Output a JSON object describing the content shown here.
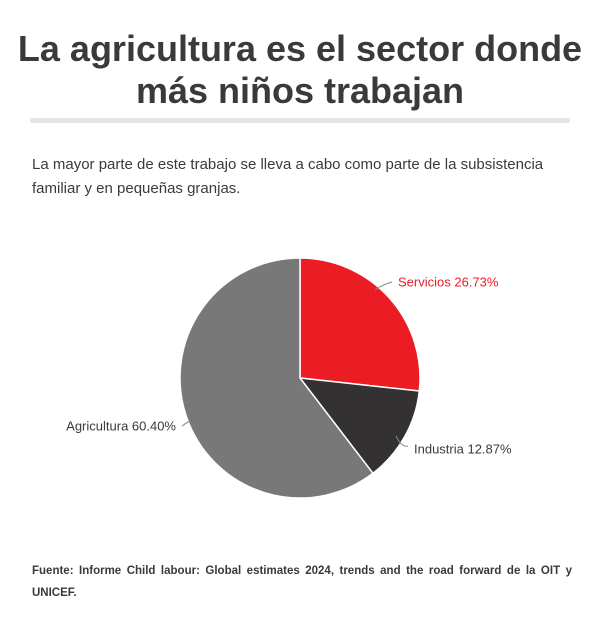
{
  "title": "La agricultura es el sector donde más niños trabajan",
  "subtitle": "La mayor parte de este trabajo se lleva a cabo como parte de la subsistencia familiar y en pequeñas granjas.",
  "source": "Fuente: Informe Child labour: Global estimates 2024, trends and the road forward de la OIT y UNICEF.",
  "colors": {
    "servicios": "#ec1c24",
    "industria": "#333132",
    "agricultura": "#797878",
    "label_default": "#3a3a3a",
    "label_highlight": "#ec1c24"
  },
  "chart_data": {
    "type": "pie",
    "slices": [
      {
        "label": "Servicios 26.73%",
        "category": "Servicios",
        "value": 26.73,
        "color": "#ec1c24",
        "label_color": "#ec1c24"
      },
      {
        "label": "Industria 12.87%",
        "category": "Industria",
        "value": 12.87,
        "color": "#333132",
        "label_color": "#3a3a3a"
      },
      {
        "label": "Agricultura 60.40%",
        "category": "Agricultura",
        "value": 60.4,
        "color": "#797878",
        "label_color": "#3a3a3a"
      }
    ],
    "start_angle": "top (12 o'clock)",
    "direction": "clockwise",
    "legend": "none"
  }
}
